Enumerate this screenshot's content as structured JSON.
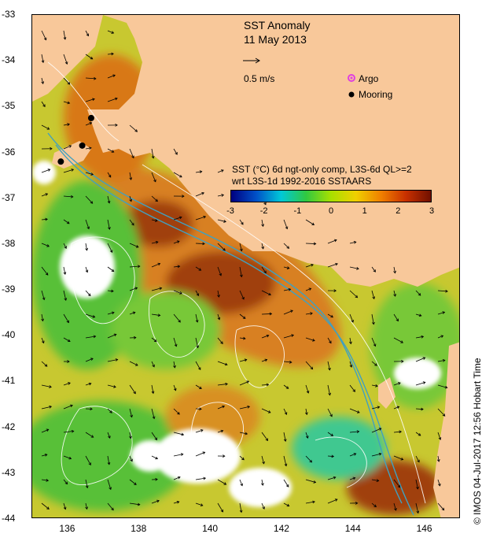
{
  "title": {
    "line1": "SST Anomaly",
    "line2": "11 May 2013"
  },
  "legend": {
    "velocity_label": "0.5 m/s",
    "argo_label": "Argo",
    "mooring_label": "Mooring",
    "argo_color": "#e040e0",
    "mooring_color": "#000000"
  },
  "colorbar": {
    "title_line1": "SST (°C) 6d ngt-only comp, L3S-6d QL>=2",
    "title_line2": "wrt L3S-1d 1992-2016 SSTAARS",
    "ticks": [
      "-3",
      "-2",
      "-1",
      "0",
      "1",
      "2",
      "3"
    ],
    "colors": [
      "#000080",
      "#0050c8",
      "#00c8d8",
      "#30c840",
      "#a8e000",
      "#f0d000",
      "#f08000",
      "#c83000",
      "#701000"
    ]
  },
  "axes": {
    "lat_ticks": [
      "-33",
      "-34",
      "-35",
      "-36",
      "-37",
      "-38",
      "-39",
      "-40",
      "-41",
      "-42",
      "-43",
      "-44"
    ],
    "lon_ticks": [
      "136",
      "138",
      "140",
      "142",
      "144",
      "146"
    ],
    "lon_range": [
      135,
      147
    ],
    "lat_range": [
      -44,
      -33
    ]
  },
  "colors": {
    "land": "#f8c89a",
    "ocean_base": "#c8c830",
    "warm": "#d87818",
    "hot": "#a04010",
    "cool": "#58c038",
    "teal": "#40c890",
    "contour": "#ffffff",
    "bathy": "#40a0c0"
  },
  "moorings": [
    {
      "lon": 136.65,
      "lat": -35.25
    },
    {
      "lon": 136.4,
      "lat": -35.85
    },
    {
      "lon": 135.8,
      "lat": -36.2
    }
  ],
  "copyright": "© IMOS 04-Jul-2017 12:56 Hobart Time"
}
